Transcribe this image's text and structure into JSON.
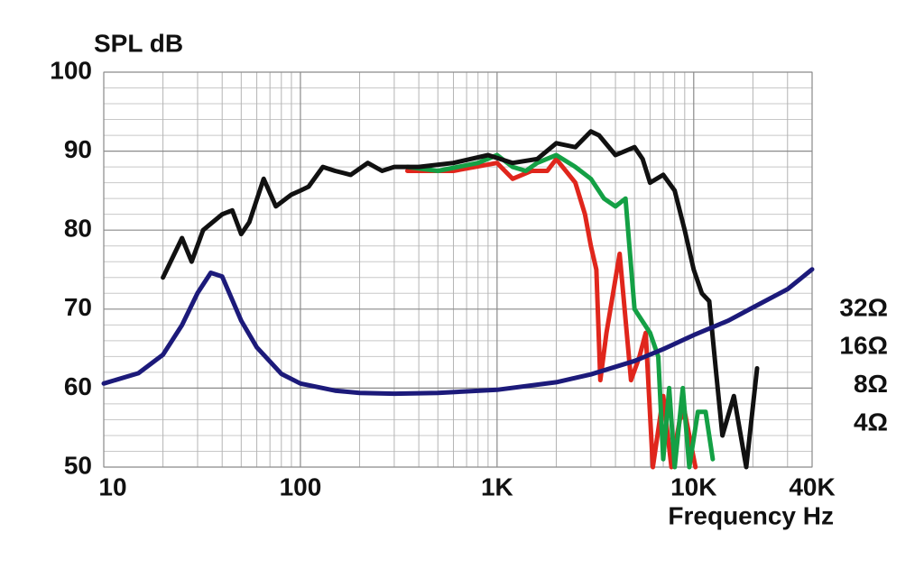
{
  "chart_data": {
    "type": "line",
    "y_label": "SPL dB",
    "x_label": "Frequency Hz",
    "xlog": true,
    "xlim": [
      10,
      40000
    ],
    "xticks": [
      10,
      100,
      {
        "value": 1000,
        "label": "1K"
      },
      {
        "value": 10000,
        "label": "10K"
      },
      {
        "value": 40000,
        "label": "40K"
      }
    ],
    "xminorticks": [
      20,
      30,
      40,
      50,
      60,
      70,
      80,
      90,
      200,
      300,
      400,
      500,
      600,
      700,
      800,
      900,
      2000,
      3000,
      4000,
      5000,
      6000,
      7000,
      8000,
      9000,
      20000,
      30000
    ],
    "ylim": [
      50,
      100
    ],
    "yticks": [
      50,
      60,
      70,
      80,
      90,
      100
    ],
    "yminorticks": [
      52,
      54,
      56,
      58,
      62,
      64,
      66,
      68,
      72,
      74,
      76,
      78,
      82,
      84,
      86,
      88,
      92,
      94,
      96,
      98
    ],
    "y2log": true,
    "y2lim": [
      1.82,
      2370
    ],
    "y2ticks": [
      {
        "value": 32,
        "label": "32Ω"
      },
      {
        "value": 16,
        "label": "16Ω"
      },
      {
        "value": 8,
        "label": "8Ω"
      },
      {
        "value": 4,
        "label": "4Ω"
      }
    ],
    "grid": true,
    "series": [
      {
        "color": "#e0261c",
        "x": [
          350,
          600,
          1000,
          1200,
          1500,
          1800,
          2000,
          2500,
          2800,
          3000,
          3200,
          3350,
          3600,
          4200,
          4800,
          5300,
          5700,
          6200,
          7000,
          7700,
          8500,
          9000,
          10200
        ],
        "values": [
          87.5,
          87.5,
          88.5,
          86.5,
          87.5,
          87.5,
          89,
          86,
          82,
          78,
          75,
          61,
          67,
          77,
          61,
          64,
          67,
          50,
          59,
          50,
          56,
          57,
          50
        ]
      },
      {
        "color": "#14a045",
        "x": [
          350,
          500,
          800,
          1000,
          1200,
          1400,
          1600,
          2000,
          2500,
          3000,
          3500,
          4000,
          4500,
          5000,
          6000,
          6600,
          7000,
          7500,
          8000,
          8800,
          9500,
          10500,
          11500,
          12500
        ],
        "values": [
          88,
          87.5,
          88.5,
          89.5,
          88,
          87.5,
          88.5,
          89.5,
          88,
          86.5,
          84,
          83,
          84,
          70,
          67,
          64,
          51,
          60,
          50,
          60,
          50,
          57,
          57,
          51
        ]
      },
      {
        "color": "#111111",
        "x": [
          20,
          25,
          28,
          32,
          40,
          45,
          50,
          55,
          65,
          75,
          90,
          100,
          110,
          130,
          150,
          180,
          220,
          260,
          300,
          400,
          600,
          900,
          1200,
          1600,
          2000,
          2500,
          3000,
          3300,
          4000,
          5000,
          5500,
          6000,
          7000,
          8000,
          9000,
          10000,
          11000,
          12000,
          13000,
          14000,
          16000,
          18500,
          21000
        ],
        "values": [
          74,
          79,
          76,
          80,
          82,
          82.5,
          79.5,
          81,
          86.5,
          83,
          84.5,
          85,
          85.5,
          88,
          87.5,
          87,
          88.5,
          87.5,
          88,
          88,
          88.5,
          89.5,
          88.5,
          89,
          91,
          90.5,
          92.5,
          92,
          89.5,
          90.5,
          89,
          86,
          87,
          85,
          80,
          75,
          72,
          71,
          62,
          54,
          59,
          50,
          62.5
        ]
      },
      {
        "color": "#1c1a7a",
        "axis": "y2",
        "x": [
          10,
          15,
          20,
          25,
          30,
          35,
          40,
          50,
          60,
          80,
          100,
          150,
          200,
          300,
          500,
          1000,
          2000,
          3000,
          5000,
          7000,
          10000,
          15000,
          20000,
          30000,
          40000
        ],
        "values": [
          8.3,
          10,
          14,
          24,
          43,
          62,
          58,
          26,
          16,
          9.9,
          8.3,
          7.3,
          7,
          6.9,
          7,
          7.4,
          8.5,
          9.8,
          12.5,
          15.5,
          20,
          26,
          33,
          46,
          66
        ]
      }
    ]
  }
}
